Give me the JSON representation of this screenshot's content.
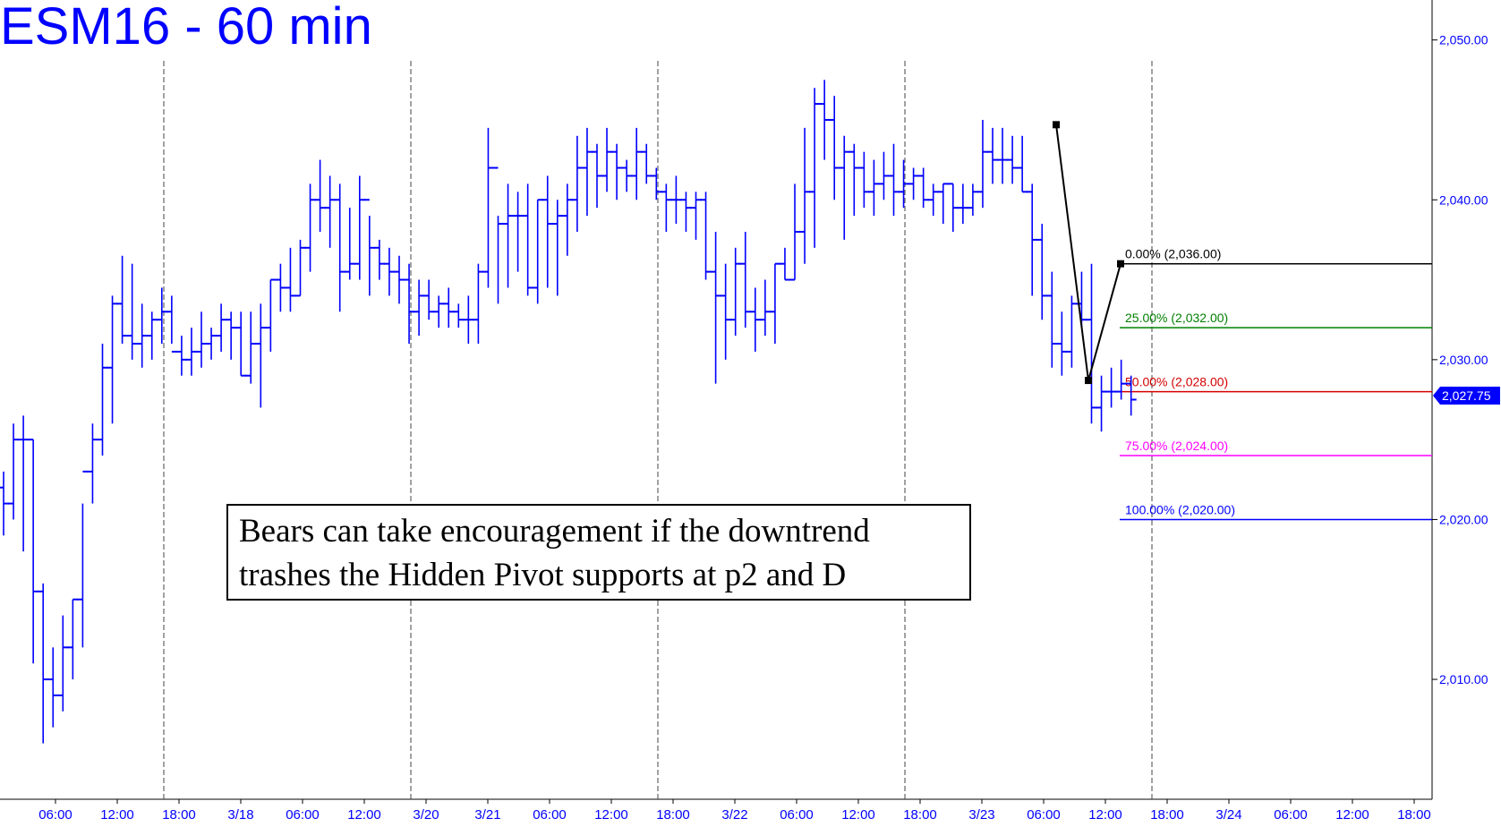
{
  "title": "ESM16 - 60 min",
  "annotation": {
    "line1": "Bears can take encouragement if the downtrend",
    "line2": "trashes the Hidden Pivot supports at p2 and D"
  },
  "chart_data": {
    "type": "bar",
    "style": "ohlc",
    "ylim": [
      2002.5,
      2052.5
    ],
    "y_ticks": [
      {
        "value": 2050,
        "label": "2,050.00"
      },
      {
        "value": 2040,
        "label": "2,040.00"
      },
      {
        "value": 2030,
        "label": "2,030.00"
      },
      {
        "value": 2020,
        "label": "2,020.00"
      },
      {
        "value": 2010,
        "label": "2,010.00"
      }
    ],
    "x_ticks": [
      "06:00",
      "12:00",
      "18:00",
      "3/18",
      "06:00",
      "12:00",
      "3/20",
      "3/21",
      "06:00",
      "12:00",
      "18:00",
      "3/22",
      "06:00",
      "12:00",
      "18:00",
      "3/23",
      "06:00",
      "12:00",
      "18:00",
      "3/24",
      "06:00",
      "12:00",
      "18:00"
    ],
    "last_price": {
      "value": 2027.75,
      "label": "2,027.75",
      "color": "#0000ff"
    },
    "fib_levels": [
      {
        "value": 2036.0,
        "label": "0.00% (2,036.00)",
        "color": "#000000"
      },
      {
        "value": 2032.0,
        "label": "25.00% (2,032.00)",
        "color": "#008000"
      },
      {
        "value": 2028.0,
        "label": "50.00% (2,028.00)",
        "color": "#d40000"
      },
      {
        "value": 2024.0,
        "label": "75.00% (2,024.00)",
        "color": "#ff00ff"
      },
      {
        "value": 2020.0,
        "label": "100.00% (2,020.00)",
        "color": "#0000ff"
      }
    ],
    "abc_pattern": [
      2044.7,
      2028.7,
      2036.0
    ],
    "bars": [
      [
        2022,
        2023,
        2019,
        2021
      ],
      [
        2021,
        2026,
        2020,
        2025
      ],
      [
        2025,
        2026.5,
        2018,
        2025
      ],
      [
        2025,
        2025,
        2011,
        2015.5
      ],
      [
        2015.5,
        2016,
        2006,
        2010
      ],
      [
        2010,
        2012,
        2007,
        2009
      ],
      [
        2009,
        2014,
        2008,
        2012
      ],
      [
        2012,
        2015,
        2010,
        2015
      ],
      [
        2015,
        2021,
        2012,
        2023
      ],
      [
        2023,
        2026,
        2021,
        2025
      ],
      [
        2025,
        2031,
        2024,
        2029.5
      ],
      [
        2029.5,
        2034,
        2026,
        2033.5
      ],
      [
        2033.5,
        2036.5,
        2031,
        2031.5
      ],
      [
        2031.5,
        2036,
        2030,
        2031
      ],
      [
        2031,
        2033.5,
        2029.5,
        2031.5
      ],
      [
        2031.5,
        2033,
        2030,
        2032.5
      ],
      [
        2032.5,
        2034.5,
        2031,
        2033
      ],
      [
        2033,
        2034,
        2031,
        2030.5
      ],
      [
        2030.5,
        2031.5,
        2029,
        2030
      ],
      [
        2030,
        2032,
        2029,
        2030.5
      ],
      [
        2030.5,
        2033,
        2029.5,
        2031
      ],
      [
        2031,
        2032,
        2030,
        2031.5
      ],
      [
        2031.5,
        2033.5,
        2030.5,
        2032.5
      ],
      [
        2032.5,
        2033,
        2030,
        2032
      ],
      [
        2032,
        2033,
        2029,
        2029
      ],
      [
        2029,
        2033,
        2028.5,
        2031
      ],
      [
        2031,
        2033.5,
        2027,
        2032
      ],
      [
        2032,
        2035,
        2030.5,
        2035
      ],
      [
        2035,
        2036,
        2033,
        2034.5
      ],
      [
        2034.5,
        2037,
        2033,
        2034
      ],
      [
        2034,
        2037.5,
        2034,
        2037
      ],
      [
        2037,
        2041,
        2035.5,
        2040
      ],
      [
        2040,
        2042.5,
        2038,
        2039.5
      ],
      [
        2039.5,
        2041.5,
        2037,
        2040
      ],
      [
        2040,
        2041,
        2033,
        2035.5
      ],
      [
        2035.5,
        2039.5,
        2035,
        2036
      ],
      [
        2036,
        2041.5,
        2035,
        2040
      ],
      [
        2040,
        2039,
        2034,
        2037
      ],
      [
        2037,
        2037.5,
        2035,
        2036
      ],
      [
        2036,
        2037,
        2034,
        2035.5
      ],
      [
        2035.5,
        2036.5,
        2033.5,
        2035
      ],
      [
        2035,
        2036,
        2031,
        2033
      ],
      [
        2033,
        2035,
        2031.5,
        2034
      ],
      [
        2034,
        2035,
        2032.5,
        2033
      ],
      [
        2033,
        2034,
        2032,
        2033.5
      ],
      [
        2033.5,
        2034.5,
        2032,
        2033
      ],
      [
        2033,
        2033.5,
        2032,
        2032.5
      ],
      [
        2032.5,
        2034,
        2031,
        2032.5
      ],
      [
        2032.5,
        2036,
        2031,
        2035.5
      ],
      [
        2035.5,
        2044.5,
        2034.5,
        2042
      ],
      [
        2042,
        2039,
        2033.5,
        2038.5
      ],
      [
        2038.5,
        2041,
        2034.5,
        2039
      ],
      [
        2039,
        2040.5,
        2035.5,
        2039
      ],
      [
        2039,
        2041,
        2034,
        2034.5
      ],
      [
        2034.5,
        2040,
        2033.5,
        2040
      ],
      [
        2040,
        2041.5,
        2034.5,
        2038.5
      ],
      [
        2038.5,
        2040,
        2034,
        2039
      ],
      [
        2039,
        2041,
        2036.5,
        2040
      ],
      [
        2040,
        2044,
        2038,
        2042
      ],
      [
        2042,
        2044.5,
        2039,
        2043
      ],
      [
        2043,
        2043.5,
        2039.5,
        2041.5
      ],
      [
        2041.5,
        2044.5,
        2040.5,
        2043
      ],
      [
        2043,
        2043.5,
        2040,
        2042
      ],
      [
        2042,
        2042.5,
        2040.5,
        2041.5
      ],
      [
        2041.5,
        2044.5,
        2040,
        2043
      ],
      [
        2043,
        2043.5,
        2041,
        2041.5
      ],
      [
        2041.5,
        2042,
        2040,
        2040.5
      ],
      [
        2040.5,
        2041,
        2038,
        2040
      ],
      [
        2040,
        2041.5,
        2038.5,
        2040
      ],
      [
        2040,
        2040.5,
        2038,
        2039.5
      ],
      [
        2039.5,
        2040.5,
        2037.5,
        2040
      ],
      [
        2040,
        2040.5,
        2035,
        2035.5
      ],
      [
        2035.5,
        2038,
        2028.5,
        2034
      ],
      [
        2034,
        2036,
        2030,
        2032.5
      ],
      [
        2032.5,
        2037,
        2031.5,
        2036
      ],
      [
        2036,
        2038,
        2032,
        2033
      ],
      [
        2033,
        2034.5,
        2030.5,
        2032.5
      ],
      [
        2032.5,
        2035,
        2031.5,
        2033
      ],
      [
        2033,
        2036,
        2031,
        2036
      ],
      [
        2036,
        2037,
        2035,
        2035
      ],
      [
        2035,
        2041,
        2035,
        2038
      ],
      [
        2038,
        2044.5,
        2036,
        2040.5
      ],
      [
        2040.5,
        2047,
        2037,
        2046
      ],
      [
        2046,
        2047.5,
        2042.5,
        2045
      ],
      [
        2045,
        2046.5,
        2040,
        2042
      ],
      [
        2042,
        2044,
        2037.5,
        2043
      ],
      [
        2043,
        2043.5,
        2039,
        2042
      ],
      [
        2042,
        2043,
        2039.5,
        2040.5
      ],
      [
        2040.5,
        2042.5,
        2039,
        2041
      ],
      [
        2041,
        2043,
        2040,
        2041.5
      ],
      [
        2041.5,
        2043.5,
        2039,
        2040.5
      ],
      [
        2040.5,
        2042.5,
        2039.5,
        2041
      ],
      [
        2041,
        2042,
        2040,
        2041.5
      ],
      [
        2041.5,
        2042,
        2039.5,
        2040
      ],
      [
        2040,
        2041,
        2039,
        2040.5
      ],
      [
        2040.5,
        2041,
        2038.5,
        2041
      ],
      [
        2041,
        2041,
        2038,
        2039.5
      ],
      [
        2039.5,
        2041,
        2038.5,
        2039.5
      ],
      [
        2039.5,
        2041,
        2039,
        2040.5
      ],
      [
        2040.5,
        2045,
        2039.5,
        2043
      ],
      [
        2043,
        2044.5,
        2041,
        2042.5
      ],
      [
        2042.5,
        2044.5,
        2041,
        2042.5
      ],
      [
        2042.5,
        2044,
        2041,
        2042
      ],
      [
        2042,
        2044,
        2040.5,
        2040.5
      ],
      [
        2040.5,
        2041,
        2034,
        2037.5
      ],
      [
        2037.5,
        2038.5,
        2032.5,
        2034
      ],
      [
        2034,
        2035.5,
        2029.5,
        2031
      ],
      [
        2031,
        2033,
        2029,
        2030.5
      ],
      [
        2030.5,
        2034,
        2029.5,
        2033.5
      ],
      [
        2033.5,
        2035.5,
        2032,
        2032.5
      ],
      [
        2032.5,
        2036,
        2026,
        2027
      ],
      [
        2027,
        2029,
        2025.5,
        2028
      ],
      [
        2028,
        2029.5,
        2027,
        2028
      ],
      [
        2028,
        2030,
        2027.5,
        2028.5
      ],
      [
        2028.5,
        2029,
        2026.5,
        2027.5
      ]
    ]
  }
}
